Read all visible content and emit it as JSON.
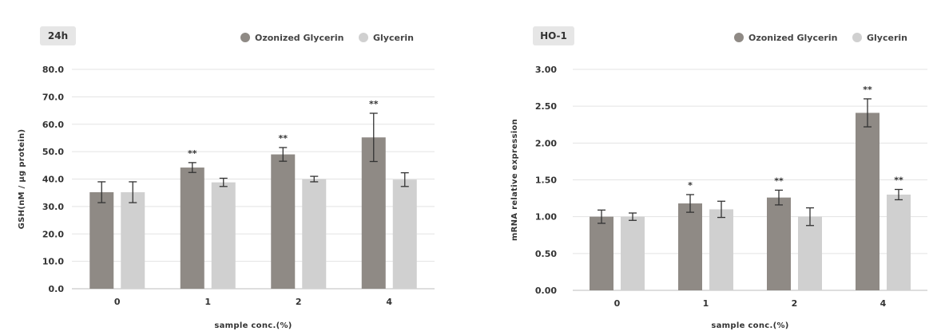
{
  "chart_data": [
    {
      "type": "bar",
      "title": "24h",
      "xlabel": "sample conc.(%)",
      "ylabel": "GSH(nM / μg protein)",
      "ylim": [
        0,
        80
      ],
      "yticks": [
        "0.0",
        "10.0",
        "20.0",
        "30.0",
        "40.0",
        "50.0",
        "60.0",
        "70.0",
        "80.0"
      ],
      "categories": [
        "0",
        "1",
        "2",
        "4"
      ],
      "grid": true,
      "legend_position": "top-right",
      "series": [
        {
          "name": "Ozonized Glycerin",
          "color": "#8f8a85",
          "values": [
            35.2,
            44.2,
            49.0,
            55.2
          ],
          "errors": [
            3.8,
            1.8,
            2.5,
            8.8
          ],
          "significance": [
            "",
            "**",
            "**",
            "**"
          ]
        },
        {
          "name": "Glycerin",
          "color": "#d0d0d0",
          "values": [
            35.2,
            38.8,
            40.0,
            39.8
          ],
          "errors": [
            3.8,
            1.5,
            1.0,
            2.5
          ],
          "significance": [
            "",
            "",
            "",
            ""
          ]
        }
      ]
    },
    {
      "type": "bar",
      "title": "HO-1",
      "xlabel": "sample conc.(%)",
      "ylabel": "mRNA relative expression",
      "ylim": [
        0,
        3
      ],
      "yticks": [
        "0.00",
        "0.50",
        "1.00",
        "1.50",
        "2.00",
        "2.50",
        "3.00"
      ],
      "categories": [
        "0",
        "1",
        "2",
        "4"
      ],
      "grid": true,
      "legend_position": "top-right",
      "series": [
        {
          "name": "Ozonized Glycerin",
          "color": "#8f8a85",
          "values": [
            1.0,
            1.18,
            1.26,
            2.41
          ],
          "errors": [
            0.09,
            0.12,
            0.1,
            0.19
          ],
          "significance": [
            "",
            "*",
            "**",
            "**"
          ]
        },
        {
          "name": "Glycerin",
          "color": "#d0d0d0",
          "values": [
            1.0,
            1.1,
            1.0,
            1.3
          ],
          "errors": [
            0.05,
            0.11,
            0.12,
            0.07
          ],
          "significance": [
            "",
            "",
            "",
            "**"
          ]
        }
      ]
    }
  ]
}
